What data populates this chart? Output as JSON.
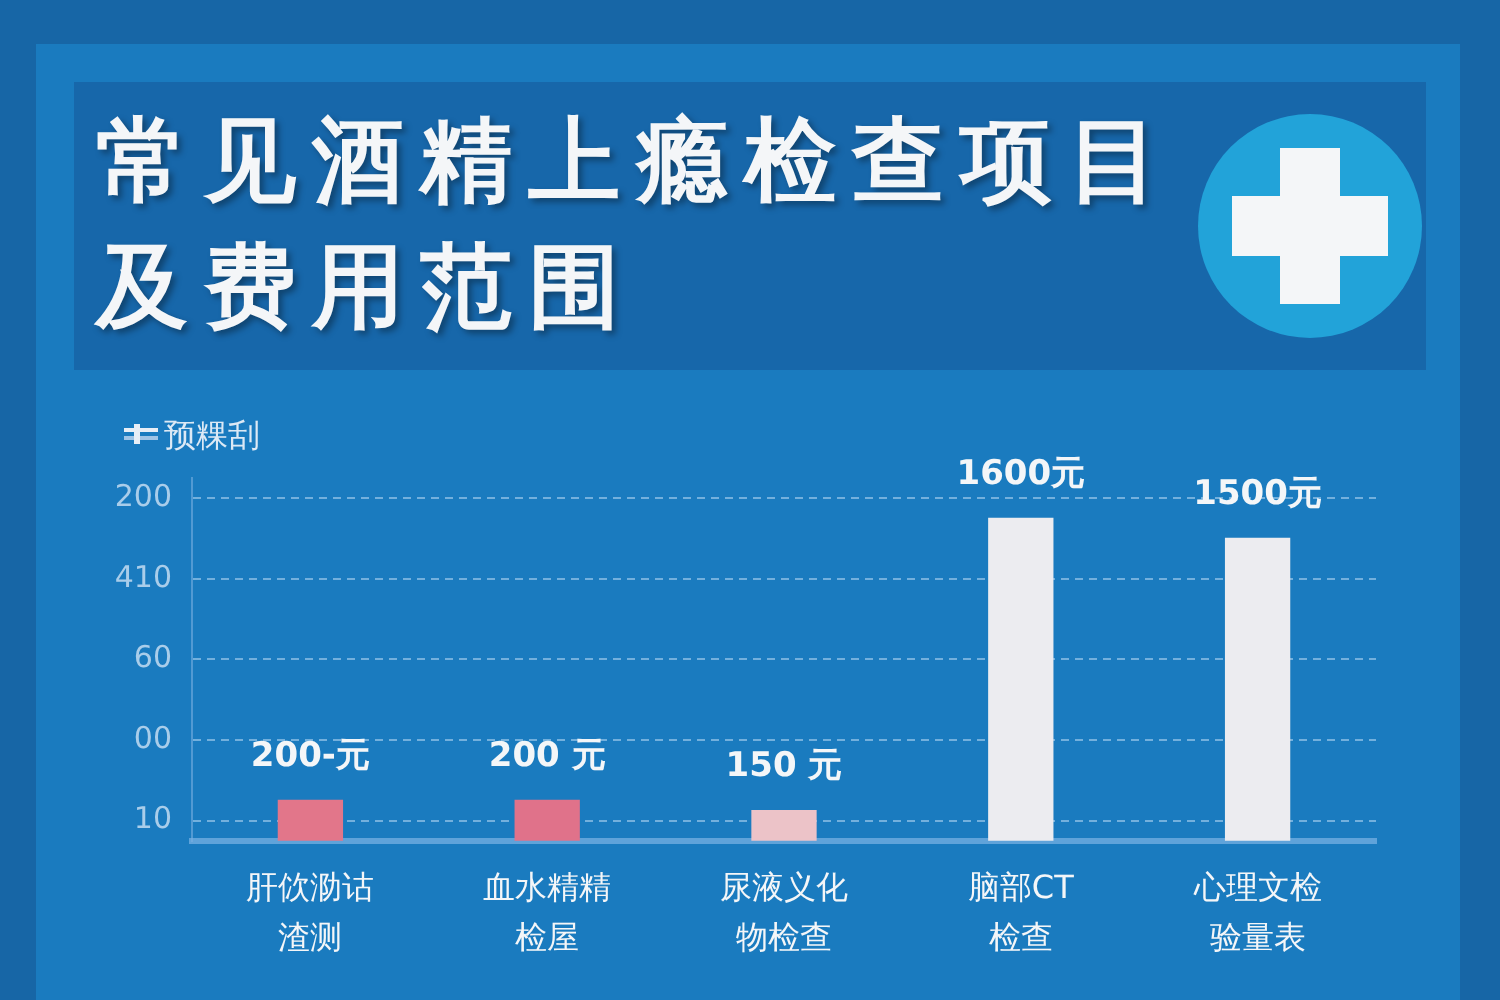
{
  "chart_data": {
    "type": "bar",
    "title": "常见酒精上瘾检查项目及费用范围",
    "ylabel": "预粿刮",
    "categories": [
      "肝佽泐诂渣测",
      "血水精精检屋",
      "尿液义化物检查",
      "脑部CT检查",
      "心理文检验量表"
    ],
    "values": [
      200,
      200,
      150,
      1600,
      1500
    ],
    "colors": [
      "#e2768a",
      "#e0728a",
      "#ecc3c8",
      "#ececf0",
      "#ececf0"
    ],
    "value_labels": [
      "200-元",
      "200 元",
      "150 元",
      "1600元",
      "1500元"
    ],
    "ylim": [
      0,
      1800
    ],
    "yticks": [
      {
        "value": 100,
        "label": null
      },
      {
        "value": 500,
        "label": null
      },
      {
        "value": 900,
        "label": null
      },
      {
        "value": 1300,
        "label": null
      },
      {
        "value": 1700,
        "label": null
      }
    ],
    "tick_labels": "x",
    "annotations": [
      "200",
      "410",
      "60",
      "00",
      "10"
    ],
    "grid": "y",
    "legend": false
  }
}
